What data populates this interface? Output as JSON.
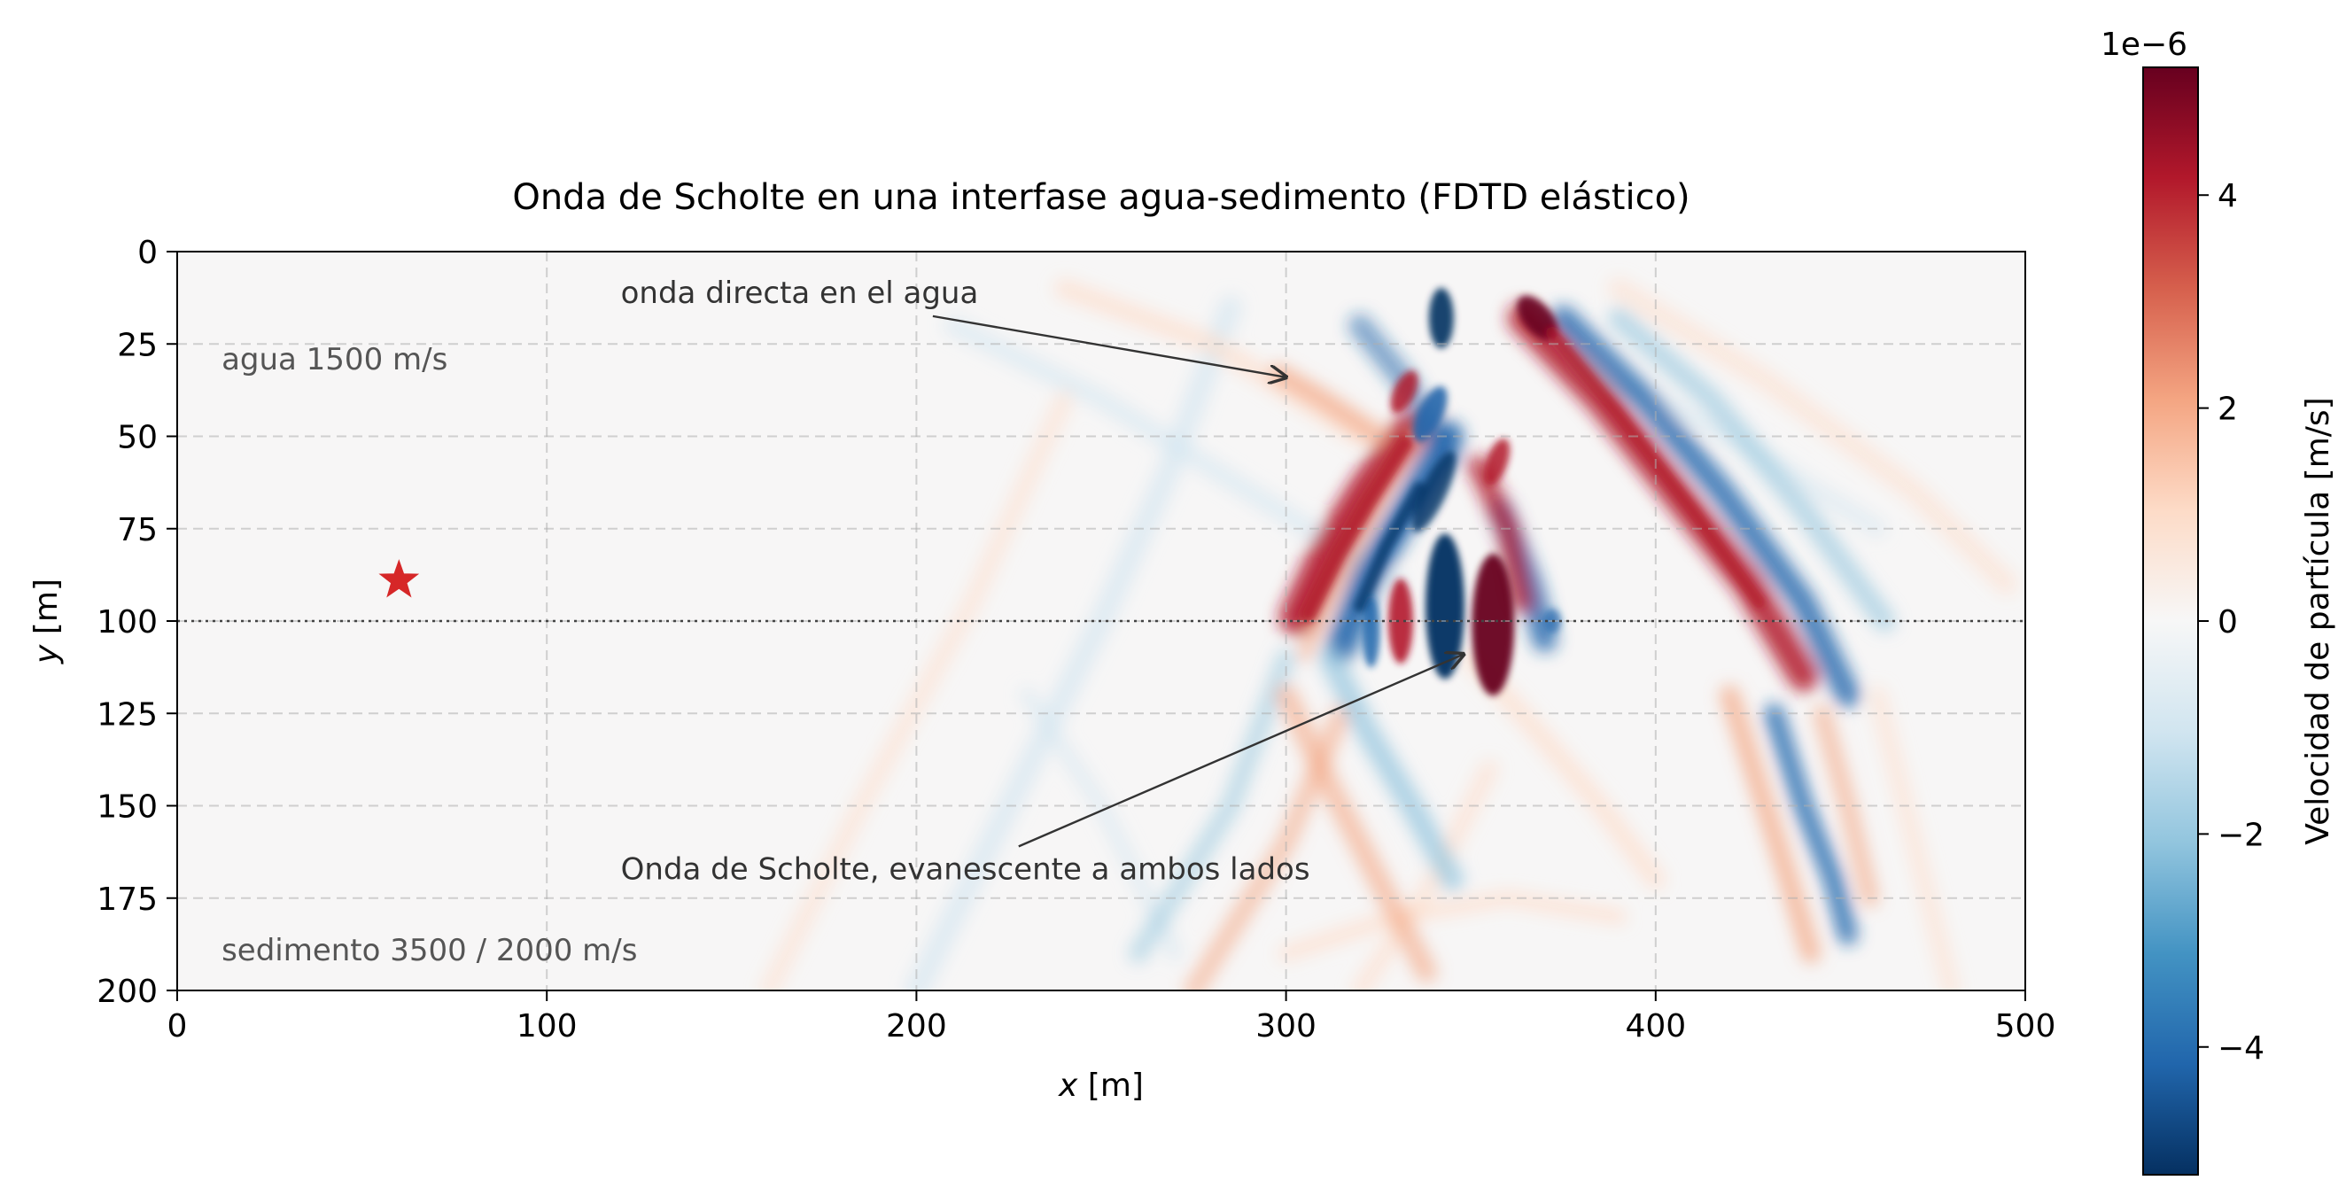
{
  "chart_data": {
    "type": "heatmap",
    "title": "Onda de Scholte en una interfase agua-sedimento (FDTD elástico)",
    "xlabel_var": "x",
    "xlabel_unit": " [m]",
    "ylabel_var": "y",
    "ylabel_unit": " [m]",
    "xlim": [
      0,
      500
    ],
    "ylim": [
      200,
      0
    ],
    "y_inverted": true,
    "xticks": [
      0,
      100,
      200,
      300,
      400,
      500
    ],
    "yticks": [
      0,
      25,
      50,
      75,
      100,
      125,
      150,
      175,
      200
    ],
    "grid": true,
    "interface_y": 100,
    "source": {
      "x": 60,
      "y": 89,
      "marker": "star",
      "color": "#d62728"
    },
    "colorbar": {
      "label": "Velocidad de partícula [m/s]",
      "offset_text": "1e−6",
      "range": [
        -5.2,
        5.2
      ],
      "ticks": [
        -4,
        -2,
        0,
        2,
        4
      ],
      "tick_labels": [
        "−4",
        "−2",
        "0",
        "2",
        "4"
      ],
      "colormap": "RdBu_r",
      "colors": [
        "#053061",
        "#2166ac",
        "#4393c3",
        "#92c5de",
        "#d1e5f0",
        "#f7f7f7",
        "#fddbc7",
        "#f4a582",
        "#d6604d",
        "#b2182b",
        "#67001f"
      ]
    },
    "text_labels": [
      {
        "text": "agua 1500 m/s",
        "x": 12,
        "y": 29
      },
      {
        "text": "sedimento 3500 / 2000 m/s",
        "x": 12,
        "y": 189
      }
    ],
    "annotations": [
      {
        "text": "onda directa en el agua",
        "text_x": 120,
        "text_y": 11,
        "arrow_x": 300,
        "arrow_y": 34
      },
      {
        "text": "Onda de Scholte, evanescente a ambos lados",
        "text_x": 120,
        "text_y": 167,
        "arrow_x": 348,
        "arrow_y": 109
      }
    ]
  }
}
